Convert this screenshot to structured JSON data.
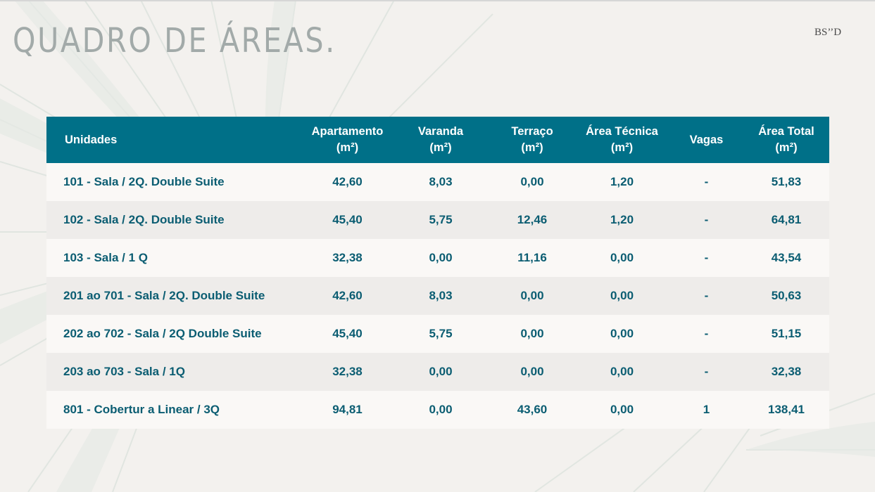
{
  "page": {
    "title": "QUADRO DE ÁREAS.",
    "brand": "BS’’D"
  },
  "colors": {
    "header_bg": "#007088",
    "header_text": "#ffffff",
    "cell_text": "#0b5d72",
    "row_light": "#faf8f6",
    "row_dark": "#eeecea",
    "title": "#a2aaa9"
  },
  "table": {
    "headers": [
      {
        "line1": "Unidades",
        "line2": ""
      },
      {
        "line1": "Apartamento",
        "line2": "(m²)"
      },
      {
        "line1": "Varanda",
        "line2": "(m²)"
      },
      {
        "line1": "Terraço",
        "line2": "(m²)"
      },
      {
        "line1": "Área Técnica",
        "line2": "(m²)"
      },
      {
        "line1": "Vagas",
        "line2": ""
      },
      {
        "line1": "Área Total",
        "line2": "(m²)"
      }
    ],
    "rows": [
      [
        "101 - Sala / 2Q. Double Suite",
        "42,60",
        "8,03",
        "0,00",
        "1,20",
        "-",
        "51,83"
      ],
      [
        "102 - Sala / 2Q. Double Suite",
        "45,40",
        "5,75",
        "12,46",
        "1,20",
        "-",
        "64,81"
      ],
      [
        "103 - Sala / 1 Q",
        "32,38",
        "0,00",
        "11,16",
        "0,00",
        "-",
        "43,54"
      ],
      [
        "201 ao 701 - Sala / 2Q. Double Suite",
        "42,60",
        "8,03",
        "0,00",
        "0,00",
        "-",
        "50,63"
      ],
      [
        "202 ao 702 - Sala / 2Q Double Suite",
        "45,40",
        "5,75",
        "0,00",
        "0,00",
        "-",
        "51,15"
      ],
      [
        "203 ao 703 - Sala / 1Q",
        "32,38",
        "0,00",
        "0,00",
        "0,00",
        "-",
        "32,38"
      ],
      [
        "801 - Cobertur a Linear / 3Q",
        "94,81",
        "0,00",
        "43,60",
        "0,00",
        "1",
        "138,41"
      ]
    ]
  }
}
